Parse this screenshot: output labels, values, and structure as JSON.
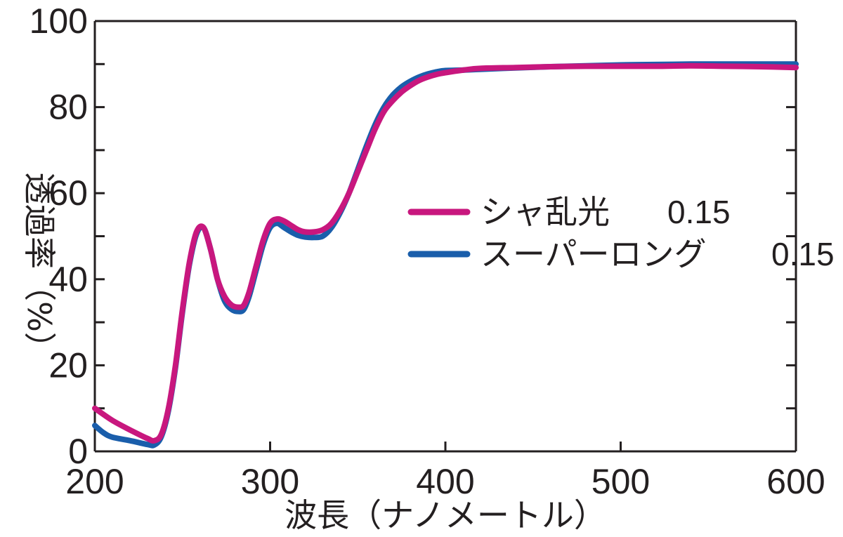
{
  "chart_data": {
    "type": "line",
    "xlabel": "波長（ナノメートル）",
    "ylabel": "透過率（%）",
    "xlim": [
      200,
      600
    ],
    "ylim": [
      0,
      100
    ],
    "x_ticks": [
      200,
      300,
      400,
      500,
      600
    ],
    "y_ticks": [
      0,
      20,
      40,
      60,
      80,
      100
    ],
    "grid": false,
    "legend_position": "right",
    "series": [
      {
        "name": "シャ乱光",
        "value_label": "0.15",
        "color": "#c8177e",
        "x": [
          200,
          210,
          220,
          230,
          234,
          238,
          242,
          246,
          250,
          254,
          258,
          262,
          266,
          270,
          274,
          278,
          282,
          285,
          288,
          292,
          296,
          300,
          304,
          308,
          312,
          316,
          320,
          325,
          330,
          335,
          340,
          345,
          350,
          355,
          360,
          365,
          370,
          375,
          380,
          385,
          390,
          395,
          400,
          410,
          420,
          440,
          460,
          480,
          500,
          520,
          540,
          560,
          580,
          600
        ],
        "y": [
          10,
          7.2,
          5,
          3,
          2.5,
          4,
          10,
          20,
          33,
          44,
          51,
          52,
          47,
          40,
          36,
          34,
          33.5,
          34,
          37,
          43,
          49,
          53,
          54,
          53.5,
          52.5,
          51.5,
          51,
          51,
          51.5,
          53,
          56,
          60,
          65,
          70,
          75,
          79,
          81.5,
          83.5,
          85,
          86.2,
          87,
          87.6,
          88,
          88.6,
          89,
          89.2,
          89.4,
          89.5,
          89.5,
          89.5,
          89.6,
          89.5,
          89.4,
          89.2
        ]
      },
      {
        "name": "スーパーロング",
        "value_label": "0.15",
        "color": "#1a5eab",
        "x": [
          200,
          205,
          210,
          220,
          230,
          234,
          238,
          242,
          246,
          250,
          254,
          258,
          262,
          266,
          270,
          274,
          278,
          282,
          285,
          288,
          292,
          296,
          300,
          304,
          308,
          312,
          316,
          320,
          325,
          330,
          335,
          340,
          345,
          350,
          355,
          360,
          365,
          370,
          375,
          380,
          385,
          390,
          395,
          400,
          410,
          420,
          440,
          460,
          480,
          500,
          520,
          540,
          560,
          580,
          600
        ],
        "y": [
          6,
          4.3,
          3.3,
          2.5,
          1.6,
          1.5,
          3.5,
          9.5,
          19.5,
          32.5,
          43.5,
          50.5,
          52,
          47,
          40,
          35,
          33,
          32.5,
          33,
          36,
          42,
          48,
          52,
          53,
          52,
          51,
          50.2,
          49.8,
          49.7,
          50,
          52,
          55.5,
          60,
          65.5,
          71,
          76,
          80,
          82.8,
          84.7,
          86,
          87,
          87.7,
          88.2,
          88.5,
          88.6,
          88.8,
          89.1,
          89.4,
          89.6,
          89.8,
          89.9,
          90,
          90,
          90,
          90
        ]
      }
    ]
  }
}
